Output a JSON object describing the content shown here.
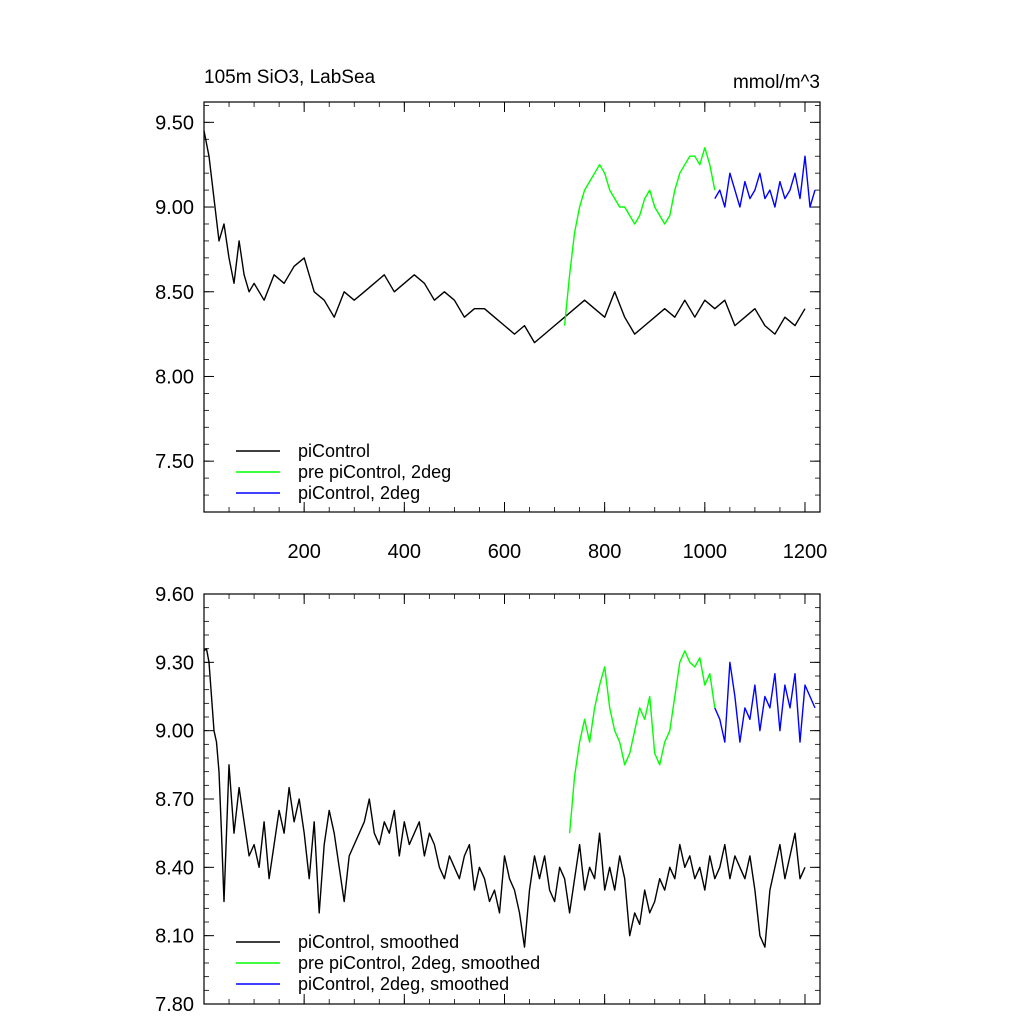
{
  "chart_data": [
    {
      "type": "line",
      "title": "105m SiO3, LabSea",
      "units": "mmol/m^3",
      "xlim": [
        0,
        1230
      ],
      "ylim": [
        7.2,
        9.62
      ],
      "yticks": [
        "7.50",
        "8.00",
        "8.50",
        "9.00",
        "9.50"
      ],
      "ytick_values": [
        7.5,
        8.0,
        8.5,
        9.0,
        9.5
      ],
      "xticks": [
        "200",
        "400",
        "600",
        "800",
        "1000",
        "1200"
      ],
      "xtick_values": [
        200,
        400,
        600,
        800,
        1000,
        1200
      ],
      "grid": false,
      "legend_position": "bottom-left",
      "series": [
        {
          "name": "piControl",
          "color": "#000000",
          "x": [
            0,
            10,
            20,
            30,
            40,
            50,
            60,
            70,
            80,
            90,
            100,
            120,
            140,
            160,
            180,
            200,
            220,
            240,
            260,
            280,
            300,
            320,
            340,
            360,
            380,
            400,
            420,
            440,
            460,
            480,
            500,
            520,
            540,
            560,
            580,
            600,
            620,
            640,
            660,
            680,
            700,
            720,
            740,
            760,
            780,
            800,
            820,
            840,
            860,
            880,
            900,
            920,
            940,
            960,
            980,
            1000,
            1020,
            1040,
            1060,
            1080,
            1100,
            1120,
            1140,
            1160,
            1180,
            1200
          ],
          "y": [
            9.45,
            9.3,
            9.05,
            8.8,
            8.9,
            8.7,
            8.55,
            8.8,
            8.6,
            8.5,
            8.55,
            8.45,
            8.6,
            8.55,
            8.65,
            8.7,
            8.5,
            8.45,
            8.35,
            8.5,
            8.45,
            8.5,
            8.55,
            8.6,
            8.5,
            8.55,
            8.6,
            8.55,
            8.45,
            8.5,
            8.45,
            8.35,
            8.4,
            8.4,
            8.35,
            8.3,
            8.25,
            8.3,
            8.2,
            8.25,
            8.3,
            8.35,
            8.4,
            8.45,
            8.4,
            8.35,
            8.5,
            8.35,
            8.25,
            8.3,
            8.35,
            8.4,
            8.35,
            8.45,
            8.35,
            8.45,
            8.4,
            8.45,
            8.3,
            8.35,
            8.4,
            8.3,
            8.25,
            8.35,
            8.3,
            8.4
          ]
        },
        {
          "name": "pre piControl, 2deg",
          "color": "#00ff00",
          "x": [
            720,
            730,
            740,
            750,
            760,
            770,
            780,
            790,
            800,
            810,
            820,
            830,
            840,
            850,
            860,
            870,
            880,
            890,
            900,
            910,
            920,
            930,
            940,
            950,
            960,
            970,
            980,
            990,
            1000,
            1010,
            1020
          ],
          "y": [
            8.3,
            8.6,
            8.85,
            9.0,
            9.1,
            9.15,
            9.2,
            9.25,
            9.2,
            9.1,
            9.05,
            9.0,
            9.0,
            8.95,
            8.9,
            8.95,
            9.05,
            9.1,
            9.0,
            8.95,
            8.9,
            8.95,
            9.1,
            9.2,
            9.25,
            9.3,
            9.3,
            9.25,
            9.35,
            9.25,
            9.1
          ]
        },
        {
          "name": "piControl, 2deg",
          "color": "#0000ff",
          "x": [
            1020,
            1030,
            1040,
            1050,
            1060,
            1070,
            1080,
            1090,
            1100,
            1110,
            1120,
            1130,
            1140,
            1150,
            1160,
            1170,
            1180,
            1190,
            1200,
            1210,
            1220
          ],
          "y": [
            9.05,
            9.1,
            9.0,
            9.2,
            9.1,
            9.0,
            9.15,
            9.05,
            9.1,
            9.2,
            9.05,
            9.1,
            9.0,
            9.15,
            9.05,
            9.1,
            9.2,
            9.05,
            9.3,
            9.0,
            9.1
          ]
        }
      ]
    },
    {
      "type": "line",
      "title": "",
      "xlim": [
        0,
        1230
      ],
      "ylim": [
        7.8,
        9.6
      ],
      "yticks": [
        "7.80",
        "8.10",
        "8.40",
        "8.70",
        "9.00",
        "9.30",
        "9.60"
      ],
      "ytick_values": [
        7.8,
        8.1,
        8.4,
        8.7,
        9.0,
        9.3,
        9.6
      ],
      "xtick_values": [
        200,
        400,
        600,
        800,
        1000,
        1200
      ],
      "grid": false,
      "legend_position": "bottom-left",
      "series": [
        {
          "name": "piControl, smoothed",
          "color": "#000000",
          "x": [
            0,
            5,
            10,
            15,
            20,
            25,
            30,
            35,
            40,
            50,
            60,
            70,
            80,
            90,
            100,
            110,
            120,
            130,
            140,
            150,
            160,
            170,
            180,
            190,
            200,
            210,
            220,
            230,
            240,
            250,
            260,
            270,
            280,
            290,
            300,
            310,
            320,
            330,
            340,
            350,
            360,
            370,
            380,
            390,
            400,
            410,
            420,
            430,
            440,
            450,
            460,
            470,
            480,
            490,
            500,
            510,
            520,
            530,
            540,
            550,
            560,
            570,
            580,
            590,
            600,
            610,
            620,
            630,
            640,
            650,
            660,
            670,
            680,
            690,
            700,
            710,
            720,
            730,
            740,
            750,
            760,
            770,
            780,
            790,
            800,
            810,
            820,
            830,
            840,
            850,
            860,
            870,
            880,
            890,
            900,
            910,
            920,
            930,
            940,
            950,
            960,
            970,
            980,
            990,
            1000,
            1010,
            1020,
            1030,
            1040,
            1050,
            1060,
            1070,
            1080,
            1090,
            1100,
            1110,
            1120,
            1130,
            1140,
            1150,
            1160,
            1170,
            1180,
            1190,
            1200
          ],
          "y": [
            9.35,
            9.36,
            9.3,
            9.15,
            9.0,
            8.95,
            8.82,
            8.55,
            8.25,
            8.85,
            8.55,
            8.75,
            8.6,
            8.45,
            8.5,
            8.4,
            8.6,
            8.35,
            8.5,
            8.65,
            8.55,
            8.75,
            8.6,
            8.7,
            8.55,
            8.35,
            8.6,
            8.2,
            8.5,
            8.65,
            8.55,
            8.4,
            8.25,
            8.45,
            8.5,
            8.55,
            8.6,
            8.7,
            8.55,
            8.5,
            8.6,
            8.55,
            8.65,
            8.45,
            8.6,
            8.5,
            8.55,
            8.6,
            8.45,
            8.55,
            8.5,
            8.4,
            8.35,
            8.45,
            8.4,
            8.35,
            8.45,
            8.5,
            8.3,
            8.4,
            8.35,
            8.25,
            8.3,
            8.2,
            8.45,
            8.35,
            8.3,
            8.2,
            8.05,
            8.3,
            8.45,
            8.35,
            8.45,
            8.3,
            8.25,
            8.4,
            8.35,
            8.2,
            8.35,
            8.5,
            8.3,
            8.4,
            8.35,
            8.55,
            8.3,
            8.4,
            8.3,
            8.45,
            8.35,
            8.1,
            8.2,
            8.15,
            8.3,
            8.2,
            8.25,
            8.35,
            8.3,
            8.4,
            8.35,
            8.5,
            8.4,
            8.45,
            8.35,
            8.4,
            8.3,
            8.45,
            8.35,
            8.4,
            8.5,
            8.35,
            8.45,
            8.4,
            8.35,
            8.45,
            8.3,
            8.1,
            8.05,
            8.3,
            8.4,
            8.5,
            8.35,
            8.45,
            8.55,
            8.35,
            8.4
          ]
        },
        {
          "name": "pre piControl, 2deg, smoothed",
          "color": "#00ff00",
          "x": [
            730,
            740,
            750,
            760,
            770,
            780,
            790,
            800,
            810,
            820,
            830,
            840,
            850,
            860,
            870,
            880,
            890,
            900,
            910,
            920,
            930,
            940,
            950,
            960,
            970,
            980,
            990,
            1000,
            1010,
            1020
          ],
          "y": [
            8.55,
            8.8,
            8.95,
            9.05,
            8.95,
            9.1,
            9.2,
            9.28,
            9.1,
            9.0,
            8.95,
            8.85,
            8.9,
            9.0,
            9.1,
            9.05,
            9.15,
            8.9,
            8.85,
            8.95,
            9.0,
            9.15,
            9.3,
            9.35,
            9.3,
            9.28,
            9.32,
            9.2,
            9.25,
            9.1
          ]
        },
        {
          "name": "piControl, 2deg, smoothed",
          "color": "#0000ff",
          "x": [
            1020,
            1030,
            1040,
            1050,
            1060,
            1070,
            1080,
            1090,
            1100,
            1110,
            1120,
            1130,
            1140,
            1150,
            1160,
            1170,
            1180,
            1190,
            1200,
            1210,
            1220
          ],
          "y": [
            9.1,
            9.05,
            8.95,
            9.3,
            9.15,
            8.95,
            9.1,
            9.05,
            9.2,
            9.0,
            9.15,
            9.1,
            9.25,
            9.0,
            9.2,
            9.1,
            9.25,
            8.95,
            9.2,
            9.15,
            9.1
          ]
        }
      ]
    }
  ]
}
